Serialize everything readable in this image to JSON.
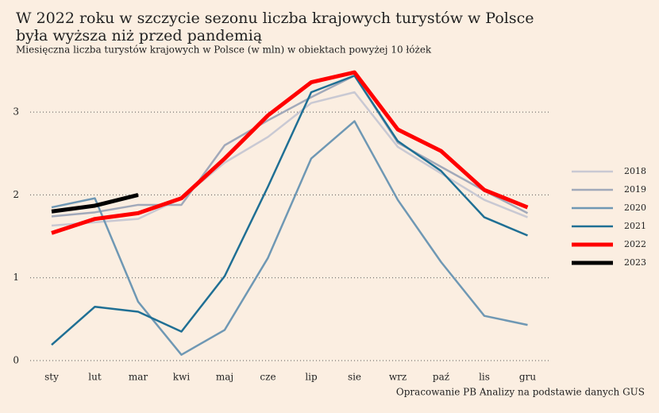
{
  "chart_data": {
    "type": "line",
    "title": [
      "W 2022 roku w szczycie sezonu liczba krajowych turystów w Polsce",
      "była wyższa niż przed pandemią"
    ],
    "subtitle": "Miesięczna liczba turystów krajowych w Polsce (w mln) w obiektach powyżej 10 łóżek",
    "source": "Opracowanie PB Analizy na podstawie danych GUS",
    "categories": [
      "sty",
      "lut",
      "mar",
      "kwi",
      "maj",
      "cze",
      "lip",
      "sie",
      "wrz",
      "paź",
      "lis",
      "gru"
    ],
    "series": [
      {
        "name": "2018",
        "color": "#c9c9d3",
        "width": 2.5,
        "values": [
          1.63,
          1.67,
          1.71,
          1.96,
          2.39,
          2.7,
          3.11,
          3.24,
          2.58,
          2.26,
          1.94,
          1.73
        ]
      },
      {
        "name": "2019",
        "color": "#a1a9ba",
        "width": 2.5,
        "values": [
          1.74,
          1.79,
          1.88,
          1.88,
          2.6,
          2.9,
          3.18,
          3.44,
          2.63,
          2.34,
          2.05,
          1.78
        ]
      },
      {
        "name": "2020",
        "color": "#6f98b4",
        "width": 2.5,
        "values": [
          1.85,
          1.96,
          0.71,
          0.07,
          0.37,
          1.24,
          2.44,
          2.89,
          1.94,
          1.19,
          0.54,
          0.43
        ]
      },
      {
        "name": "2021",
        "color": "#1f6f94",
        "width": 2.5,
        "values": [
          0.19,
          0.65,
          0.59,
          0.35,
          1.02,
          2.1,
          3.24,
          3.44,
          2.65,
          2.29,
          1.73,
          1.51
        ]
      },
      {
        "name": "2022",
        "color": "#ff0000",
        "width": 5,
        "values": [
          1.54,
          1.71,
          1.78,
          1.96,
          2.44,
          2.96,
          3.36,
          3.48,
          2.79,
          2.53,
          2.06,
          1.85
        ]
      },
      {
        "name": "2023",
        "color": "#000000",
        "width": 5,
        "values": [
          1.8,
          1.87,
          2.0,
          null,
          null,
          null,
          null,
          null,
          null,
          null,
          null,
          null
        ]
      }
    ],
    "ylim": [
      0,
      3.5
    ],
    "yticks": [
      0,
      1,
      2,
      3
    ],
    "grid": true,
    "legend": "right"
  }
}
